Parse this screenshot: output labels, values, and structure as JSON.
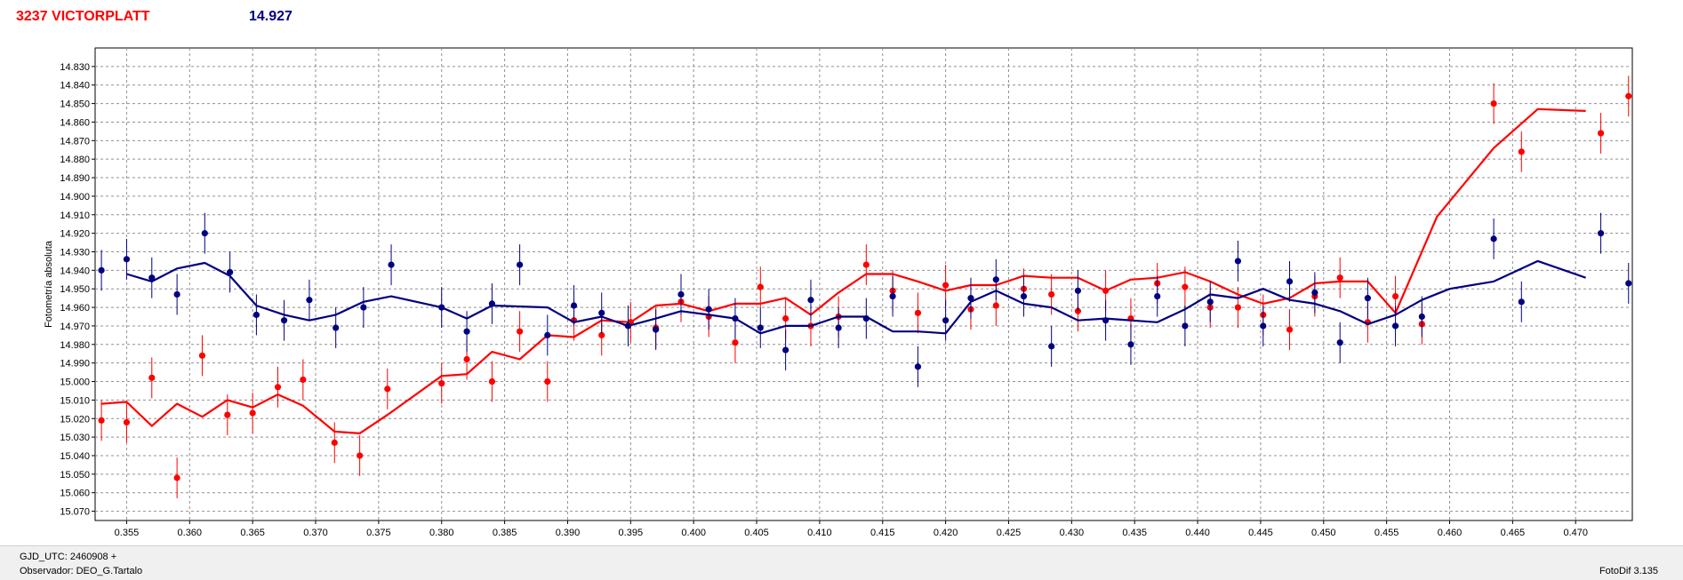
{
  "header": {
    "title": "3237 VICTORPLATT",
    "value": "14.927",
    "title_color": "#ff0000",
    "value_color": "#000080"
  },
  "footer": {
    "gjd_label": "GJD_UTC: 2460908 +",
    "observer_label": "Observador: DEO_G.Tartalo",
    "version": "FotoDif 3.135"
  },
  "chart_data": {
    "type": "scatter",
    "title": "",
    "xlabel": "",
    "ylabel": "Fotometría absoluta",
    "xlim": [
      0.3525,
      0.4745
    ],
    "ylim": [
      14.82,
      15.075
    ],
    "y_inverted": true,
    "grid": true,
    "x_ticks": [
      0.355,
      0.36,
      0.365,
      0.37,
      0.375,
      0.38,
      0.385,
      0.39,
      0.395,
      0.4,
      0.405,
      0.41,
      0.415,
      0.42,
      0.425,
      0.43,
      0.435,
      0.44,
      0.445,
      0.45,
      0.455,
      0.46,
      0.465,
      0.47
    ],
    "x_tick_labels": [
      "0.355",
      "0.360",
      "0.365",
      "0.370",
      "0.375",
      "0.380",
      "0.385",
      "0.390",
      "0.395",
      "0.400",
      "0.405",
      "0.410",
      "0.415",
      "0.420",
      "0.425",
      "0.430",
      "0.435",
      "0.440",
      "0.445",
      "0.450",
      "0.455",
      "0.460",
      "0.465",
      "0.470"
    ],
    "y_ticks": [
      14.83,
      14.84,
      14.85,
      14.86,
      14.87,
      14.88,
      14.89,
      14.9,
      14.91,
      14.92,
      14.93,
      14.94,
      14.95,
      14.96,
      14.97,
      14.98,
      14.99,
      15.0,
      15.01,
      15.02,
      15.03,
      15.04,
      15.05,
      15.06,
      15.07
    ],
    "y_tick_labels": [
      "14.830",
      "14.840",
      "14.850",
      "14.860",
      "14.870",
      "14.880",
      "14.890",
      "14.900",
      "14.910",
      "14.920",
      "14.930",
      "14.940",
      "14.950",
      "14.960",
      "14.970",
      "14.980",
      "14.990",
      "15.000",
      "15.010",
      "15.020",
      "15.030",
      "15.040",
      "15.050",
      "15.060",
      "15.070"
    ],
    "series": [
      {
        "color": "#ff0000",
        "points": [
          [
            0.353,
            15.021
          ],
          [
            0.355,
            15.022
          ],
          [
            0.357,
            14.998
          ],
          [
            0.359,
            15.052
          ],
          [
            0.361,
            14.986
          ],
          [
            0.363,
            15.018
          ],
          [
            0.365,
            15.017
          ],
          [
            0.367,
            15.003
          ],
          [
            0.369,
            14.999
          ],
          [
            0.3715,
            15.033
          ],
          [
            0.3735,
            15.04
          ],
          [
            0.3757,
            15.004
          ],
          [
            0.38,
            15.001
          ],
          [
            0.382,
            14.988
          ],
          [
            0.384,
            15.0
          ],
          [
            0.3862,
            14.973
          ],
          [
            0.3884,
            15.0
          ],
          [
            0.3905,
            14.967
          ],
          [
            0.3927,
            14.975
          ],
          [
            0.395,
            14.968
          ],
          [
            0.397,
            14.971
          ],
          [
            0.399,
            14.957
          ],
          [
            0.4012,
            14.965
          ],
          [
            0.4033,
            14.979
          ],
          [
            0.4053,
            14.949
          ],
          [
            0.4073,
            14.966
          ],
          [
            0.4093,
            14.97
          ],
          [
            0.4115,
            14.965
          ],
          [
            0.4137,
            14.937
          ],
          [
            0.4158,
            14.951
          ],
          [
            0.4178,
            14.963
          ],
          [
            0.42,
            14.948
          ],
          [
            0.422,
            14.961
          ],
          [
            0.424,
            14.959
          ],
          [
            0.4262,
            14.95
          ],
          [
            0.4284,
            14.953
          ],
          [
            0.4305,
            14.962
          ],
          [
            0.4327,
            14.951
          ],
          [
            0.4347,
            14.966
          ],
          [
            0.4368,
            14.947
          ],
          [
            0.439,
            14.949
          ],
          [
            0.441,
            14.96
          ],
          [
            0.4432,
            14.96
          ],
          [
            0.4452,
            14.964
          ],
          [
            0.4473,
            14.972
          ],
          [
            0.4493,
            14.954
          ],
          [
            0.4513,
            14.944
          ],
          [
            0.4535,
            14.968
          ],
          [
            0.4557,
            14.954
          ],
          [
            0.4578,
            14.969
          ],
          [
            0.4635,
            14.85
          ],
          [
            0.4657,
            14.876
          ],
          [
            0.472,
            14.866
          ],
          [
            0.4742,
            14.846
          ]
        ],
        "fit": [
          [
            0.353,
            15.012
          ],
          [
            0.355,
            15.011
          ],
          [
            0.357,
            15.024
          ],
          [
            0.359,
            15.012
          ],
          [
            0.361,
            15.019
          ],
          [
            0.363,
            15.01
          ],
          [
            0.365,
            15.014
          ],
          [
            0.367,
            15.007
          ],
          [
            0.369,
            15.013
          ],
          [
            0.3715,
            15.027
          ],
          [
            0.3735,
            15.028
          ],
          [
            0.3757,
            15.018
          ],
          [
            0.38,
            14.997
          ],
          [
            0.382,
            14.996
          ],
          [
            0.384,
            14.984
          ],
          [
            0.3862,
            14.988
          ],
          [
            0.3884,
            14.975
          ],
          [
            0.3905,
            14.976
          ],
          [
            0.3927,
            14.967
          ],
          [
            0.395,
            14.968
          ],
          [
            0.397,
            14.959
          ],
          [
            0.399,
            14.958
          ],
          [
            0.4012,
            14.962
          ],
          [
            0.4033,
            14.958
          ],
          [
            0.4053,
            14.958
          ],
          [
            0.4073,
            14.955
          ],
          [
            0.4093,
            14.964
          ],
          [
            0.4115,
            14.952
          ],
          [
            0.4137,
            14.942
          ],
          [
            0.4158,
            14.942
          ],
          [
            0.4178,
            14.946
          ],
          [
            0.42,
            14.951
          ],
          [
            0.422,
            14.948
          ],
          [
            0.424,
            14.948
          ],
          [
            0.4262,
            14.943
          ],
          [
            0.4284,
            14.944
          ],
          [
            0.4305,
            14.944
          ],
          [
            0.4327,
            14.951
          ],
          [
            0.4347,
            14.945
          ],
          [
            0.4368,
            14.944
          ],
          [
            0.439,
            14.941
          ],
          [
            0.441,
            14.946
          ],
          [
            0.4432,
            14.953
          ],
          [
            0.4452,
            14.958
          ],
          [
            0.4473,
            14.955
          ],
          [
            0.4493,
            14.947
          ],
          [
            0.4513,
            14.946
          ],
          [
            0.4535,
            14.946
          ],
          [
            0.4557,
            14.963
          ],
          [
            0.459,
            14.911
          ],
          [
            0.4635,
            14.874
          ],
          [
            0.467,
            14.853
          ],
          [
            0.4708,
            14.854
          ]
        ]
      },
      {
        "color": "#000080",
        "points": [
          [
            0.353,
            14.94
          ],
          [
            0.355,
            14.934
          ],
          [
            0.357,
            14.944
          ],
          [
            0.359,
            14.953
          ],
          [
            0.3612,
            14.92
          ],
          [
            0.3632,
            14.941
          ],
          [
            0.3653,
            14.964
          ],
          [
            0.3675,
            14.967
          ],
          [
            0.3695,
            14.956
          ],
          [
            0.3716,
            14.971
          ],
          [
            0.3738,
            14.96
          ],
          [
            0.376,
            14.937
          ],
          [
            0.38,
            14.96
          ],
          [
            0.382,
            14.973
          ],
          [
            0.384,
            14.958
          ],
          [
            0.3862,
            14.937
          ],
          [
            0.3884,
            14.975
          ],
          [
            0.3905,
            14.959
          ],
          [
            0.3927,
            14.963
          ],
          [
            0.3948,
            14.97
          ],
          [
            0.397,
            14.972
          ],
          [
            0.399,
            14.953
          ],
          [
            0.4012,
            14.961
          ],
          [
            0.4033,
            14.966
          ],
          [
            0.4053,
            14.971
          ],
          [
            0.4073,
            14.983
          ],
          [
            0.4093,
            14.956
          ],
          [
            0.4115,
            14.971
          ],
          [
            0.4137,
            14.966
          ],
          [
            0.4158,
            14.954
          ],
          [
            0.4178,
            14.992
          ],
          [
            0.42,
            14.967
          ],
          [
            0.422,
            14.955
          ],
          [
            0.424,
            14.945
          ],
          [
            0.4262,
            14.954
          ],
          [
            0.4284,
            14.981
          ],
          [
            0.4305,
            14.951
          ],
          [
            0.4327,
            14.967
          ],
          [
            0.4347,
            14.98
          ],
          [
            0.4368,
            14.954
          ],
          [
            0.439,
            14.97
          ],
          [
            0.441,
            14.957
          ],
          [
            0.4432,
            14.935
          ],
          [
            0.4452,
            14.97
          ],
          [
            0.4473,
            14.946
          ],
          [
            0.4493,
            14.952
          ],
          [
            0.4513,
            14.979
          ],
          [
            0.4535,
            14.955
          ],
          [
            0.4557,
            14.97
          ],
          [
            0.4578,
            14.965
          ],
          [
            0.4635,
            14.923
          ],
          [
            0.4657,
            14.957
          ],
          [
            0.472,
            14.92
          ],
          [
            0.4742,
            14.947
          ]
        ],
        "fit": [
          [
            0.355,
            14.942
          ],
          [
            0.357,
            14.946
          ],
          [
            0.359,
            14.939
          ],
          [
            0.3612,
            14.936
          ],
          [
            0.3632,
            14.943
          ],
          [
            0.3653,
            14.959
          ],
          [
            0.3675,
            14.964
          ],
          [
            0.3695,
            14.967
          ],
          [
            0.3716,
            14.964
          ],
          [
            0.3738,
            14.957
          ],
          [
            0.376,
            14.954
          ],
          [
            0.38,
            14.96
          ],
          [
            0.382,
            14.966
          ],
          [
            0.384,
            14.959
          ],
          [
            0.3884,
            14.96
          ],
          [
            0.3905,
            14.968
          ],
          [
            0.3927,
            14.965
          ],
          [
            0.3948,
            14.97
          ],
          [
            0.397,
            14.966
          ],
          [
            0.399,
            14.962
          ],
          [
            0.4012,
            14.964
          ],
          [
            0.4033,
            14.966
          ],
          [
            0.4053,
            14.974
          ],
          [
            0.4073,
            14.97
          ],
          [
            0.4093,
            14.97
          ],
          [
            0.4115,
            14.965
          ],
          [
            0.4137,
            14.965
          ],
          [
            0.4158,
            14.973
          ],
          [
            0.4178,
            14.973
          ],
          [
            0.42,
            14.974
          ],
          [
            0.422,
            14.957
          ],
          [
            0.424,
            14.951
          ],
          [
            0.4262,
            14.958
          ],
          [
            0.4284,
            14.96
          ],
          [
            0.4305,
            14.967
          ],
          [
            0.4327,
            14.966
          ],
          [
            0.4347,
            14.967
          ],
          [
            0.4368,
            14.968
          ],
          [
            0.439,
            14.961
          ],
          [
            0.441,
            14.953
          ],
          [
            0.4432,
            14.955
          ],
          [
            0.4452,
            14.95
          ],
          [
            0.4473,
            14.956
          ],
          [
            0.4493,
            14.958
          ],
          [
            0.4513,
            14.962
          ],
          [
            0.4535,
            14.969
          ],
          [
            0.4557,
            14.964
          ],
          [
            0.4578,
            14.956
          ],
          [
            0.46,
            14.95
          ],
          [
            0.4635,
            14.946
          ],
          [
            0.467,
            14.935
          ],
          [
            0.4708,
            14.944
          ]
        ]
      }
    ],
    "error_bar": 0.011
  }
}
